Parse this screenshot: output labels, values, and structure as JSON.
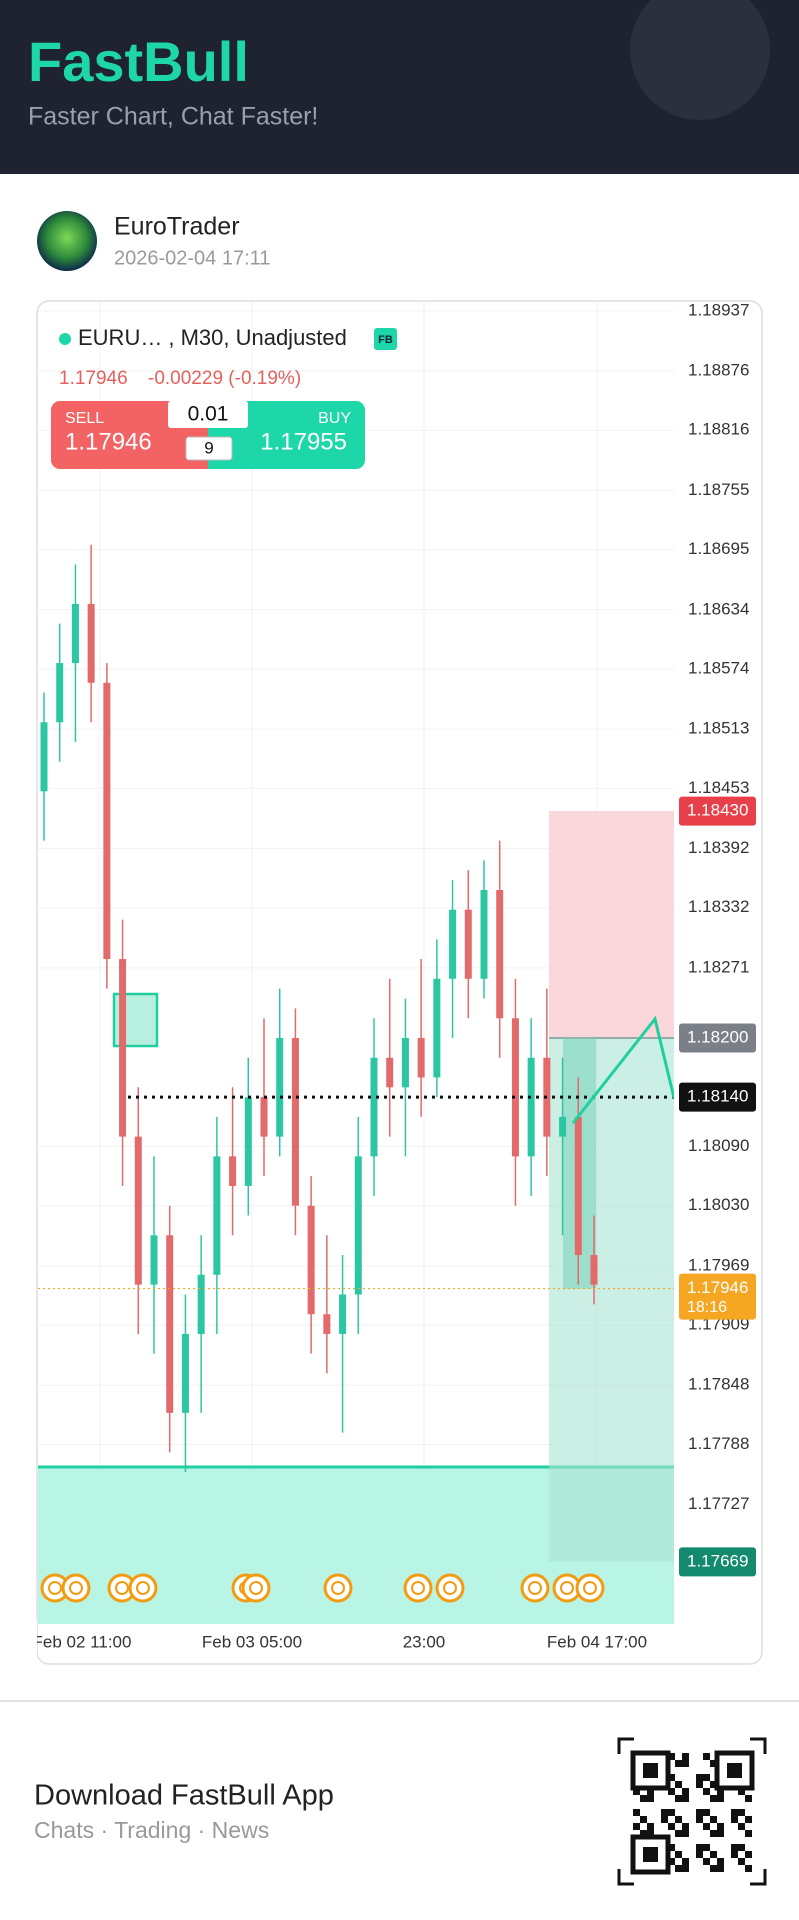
{
  "header": {
    "title": "FastBull",
    "subtitle": "Faster Chart, Chat Faster!"
  },
  "post": {
    "author": "EuroTrader",
    "time": "2026-02-04 17:11"
  },
  "chart_data": {
    "type": "candlestick",
    "symbol": "EURU…",
    "meta": ", M30, Unadjusted",
    "badge": "FB",
    "last_price": "1.17946",
    "change": "-0.00229 (-0.19%)",
    "ticket": {
      "sell_label": "SELL",
      "sell_price": "1.17946",
      "buy_label": "BUY",
      "buy_price": "1.17955",
      "lot": "0.01",
      "spread": "9"
    },
    "ylim": [
      1.17606,
      1.18946
    ],
    "yticks": [
      1.18937,
      1.18876,
      1.18816,
      1.18755,
      1.18695,
      1.18634,
      1.18574,
      1.18513,
      1.18453,
      1.18392,
      1.18332,
      1.18271,
      {
        "value": 1.1809,
        "label": "1.18090"
      },
      {
        "value": 1.1803,
        "label": "1.18030"
      },
      1.17969,
      1.17909,
      1.17848,
      1.17788,
      1.17727
    ],
    "xticks": [
      "Feb 02 11:00",
      "Feb 03 05:00",
      "23:00",
      "Feb 04 17:00"
    ],
    "open": [
      1.1845,
      1.1852,
      1.1858,
      1.1864,
      1.1856,
      1.1828,
      1.181,
      1.1795,
      1.18,
      1.1782,
      1.179,
      1.1796,
      1.1808,
      1.1805,
      1.1814,
      1.181,
      1.182,
      1.1803,
      1.1792,
      1.179,
      1.1794,
      1.1808,
      1.1818,
      1.1815,
      1.182,
      1.1816,
      1.1826,
      1.1833,
      1.1826,
      1.1835,
      1.1822,
      1.1808,
      1.1818,
      1.181,
      1.1812,
      1.1798
    ],
    "high": [
      1.1855,
      1.1862,
      1.1868,
      1.187,
      1.1858,
      1.1832,
      1.1815,
      1.1808,
      1.1803,
      1.1794,
      1.18,
      1.1812,
      1.1815,
      1.1818,
      1.1822,
      1.1825,
      1.1823,
      1.1806,
      1.18,
      1.1798,
      1.1812,
      1.1822,
      1.1826,
      1.1824,
      1.1828,
      1.183,
      1.1836,
      1.1837,
      1.1838,
      1.184,
      1.1826,
      1.1822,
      1.1825,
      1.1818,
      1.1816,
      1.1802
    ],
    "low": [
      1.184,
      1.1848,
      1.185,
      1.1852,
      1.1825,
      1.1805,
      1.179,
      1.1788,
      1.1778,
      1.1776,
      1.1782,
      1.179,
      1.18,
      1.1802,
      1.1806,
      1.1808,
      1.18,
      1.1788,
      1.1786,
      1.178,
      1.179,
      1.1804,
      1.181,
      1.1808,
      1.1812,
      1.1814,
      1.182,
      1.1822,
      1.1824,
      1.1818,
      1.1803,
      1.1804,
      1.1806,
      1.18,
      1.1795,
      1.1793
    ],
    "close": [
      1.1852,
      1.1858,
      1.1864,
      1.1856,
      1.1828,
      1.181,
      1.1795,
      1.18,
      1.1782,
      1.179,
      1.1796,
      1.1808,
      1.1805,
      1.1814,
      1.181,
      1.182,
      1.1803,
      1.1792,
      1.179,
      1.1794,
      1.1808,
      1.1818,
      1.1815,
      1.182,
      1.1816,
      1.1826,
      1.1833,
      1.1826,
      1.1835,
      1.1822,
      1.1808,
      1.1818,
      1.181,
      1.1812,
      1.1798,
      1.1795
    ],
    "up_color": "#2cc7a2",
    "down_color": "#e26a6a",
    "levels": [
      {
        "value": 1.1843,
        "label": "1.18430",
        "color": "#e8404a"
      },
      {
        "value": 1.182,
        "label": "1.18200",
        "color": "#7b7f88"
      },
      {
        "value": 1.1814,
        "label": "1.18140",
        "color": "#111111"
      },
      {
        "value": 1.17946,
        "label": "1.17946",
        "color": "#f5a623"
      },
      {
        "value": 1.17669,
        "label": "1.17669",
        "color": "#138a6e"
      }
    ],
    "countdown": "18:16"
  },
  "footer": {
    "title": "Download FastBull App",
    "subtitle": "Chats · Trading · News"
  }
}
